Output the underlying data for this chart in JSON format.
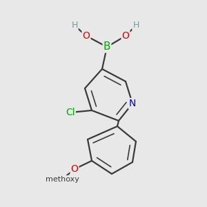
{
  "bg_color": "#e8e8e8",
  "bond_color": "#3a3a3a",
  "bond_width": 1.6,
  "atom_colors": {
    "B": "#00aa00",
    "O": "#dd0000",
    "N": "#0000cc",
    "Cl": "#00aa00",
    "C": "#3a3a3a",
    "H": "#7a9a9a"
  },
  "figsize": [
    3.0,
    3.0
  ],
  "dpi": 100,
  "xlim": [
    0,
    300
  ],
  "ylim": [
    0,
    300
  ]
}
